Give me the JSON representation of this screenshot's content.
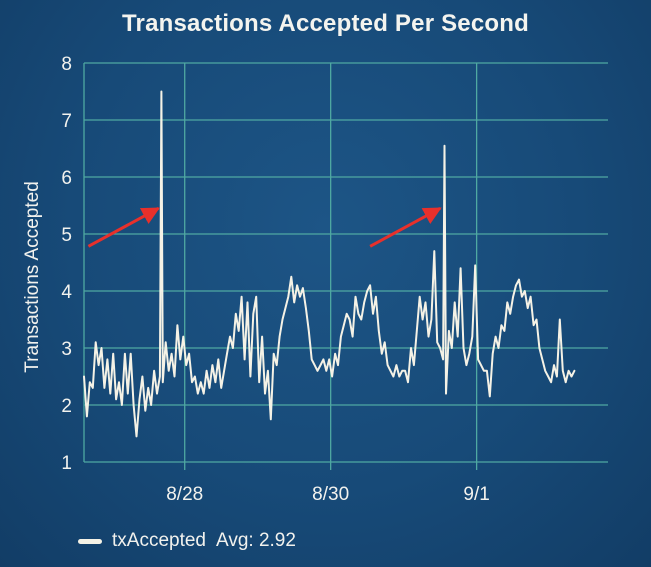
{
  "chart_data": {
    "type": "line",
    "title": "Transactions Accepted Per Second",
    "ylabel": "Transactions Accepted",
    "xlabel": "",
    "ylim": [
      1,
      8
    ],
    "yticks": [
      "1",
      "2",
      "3",
      "4",
      "5",
      "6",
      "7",
      "8"
    ],
    "xtick_labels": [
      "8/28",
      "8/30",
      "9/1"
    ],
    "x_range_days": [
      26.62,
      33.8
    ],
    "xtick_days": [
      28,
      30,
      32
    ],
    "grid": true,
    "legend": "bottom-left",
    "line_color": "#f5f2e6",
    "grid_color": "#4fa9a2",
    "arrow_color": "#e8302b",
    "series": [
      {
        "name": "txAccepted",
        "legend_suffix": "Avg: 2.92",
        "points": [
          [
            26.62,
            2.5
          ],
          [
            26.66,
            1.8
          ],
          [
            26.7,
            2.4
          ],
          [
            26.74,
            2.3
          ],
          [
            26.78,
            3.1
          ],
          [
            26.82,
            2.7
          ],
          [
            26.86,
            3.0
          ],
          [
            26.9,
            2.3
          ],
          [
            26.94,
            2.8
          ],
          [
            26.98,
            2.2
          ],
          [
            27.02,
            2.9
          ],
          [
            27.06,
            2.1
          ],
          [
            27.1,
            2.4
          ],
          [
            27.14,
            2.0
          ],
          [
            27.18,
            2.9
          ],
          [
            27.22,
            2.2
          ],
          [
            27.26,
            2.9
          ],
          [
            27.3,
            2.0
          ],
          [
            27.34,
            1.45
          ],
          [
            27.38,
            2.1
          ],
          [
            27.42,
            2.5
          ],
          [
            27.46,
            1.9
          ],
          [
            27.5,
            2.3
          ],
          [
            27.54,
            2.0
          ],
          [
            27.58,
            2.6
          ],
          [
            27.62,
            2.2
          ],
          [
            27.66,
            2.5
          ],
          [
            27.68,
            7.5
          ],
          [
            27.7,
            2.4
          ],
          [
            27.74,
            3.1
          ],
          [
            27.78,
            2.6
          ],
          [
            27.82,
            2.9
          ],
          [
            27.86,
            2.5
          ],
          [
            27.9,
            3.4
          ],
          [
            27.94,
            2.8
          ],
          [
            27.98,
            3.2
          ],
          [
            28.02,
            2.7
          ],
          [
            28.06,
            2.9
          ],
          [
            28.1,
            2.4
          ],
          [
            28.14,
            2.5
          ],
          [
            28.18,
            2.2
          ],
          [
            28.22,
            2.4
          ],
          [
            28.26,
            2.2
          ],
          [
            28.3,
            2.6
          ],
          [
            28.34,
            2.3
          ],
          [
            28.38,
            2.7
          ],
          [
            28.42,
            2.4
          ],
          [
            28.46,
            2.8
          ],
          [
            28.5,
            2.3
          ],
          [
            28.54,
            2.6
          ],
          [
            28.58,
            2.9
          ],
          [
            28.62,
            3.2
          ],
          [
            28.66,
            3.0
          ],
          [
            28.7,
            3.6
          ],
          [
            28.74,
            3.3
          ],
          [
            28.78,
            3.9
          ],
          [
            28.82,
            2.8
          ],
          [
            28.86,
            3.8
          ],
          [
            28.9,
            2.5
          ],
          [
            28.94,
            3.6
          ],
          [
            28.98,
            3.9
          ],
          [
            29.02,
            2.4
          ],
          [
            29.06,
            3.2
          ],
          [
            29.1,
            2.2
          ],
          [
            29.14,
            2.6
          ],
          [
            29.18,
            1.75
          ],
          [
            29.22,
            2.9
          ],
          [
            29.26,
            2.7
          ],
          [
            29.3,
            3.2
          ],
          [
            29.34,
            3.5
          ],
          [
            29.38,
            3.7
          ],
          [
            29.42,
            3.9
          ],
          [
            29.46,
            4.25
          ],
          [
            29.5,
            3.8
          ],
          [
            29.54,
            4.1
          ],
          [
            29.58,
            3.9
          ],
          [
            29.62,
            4.05
          ],
          [
            29.66,
            3.7
          ],
          [
            29.7,
            3.3
          ],
          [
            29.74,
            2.8
          ],
          [
            29.78,
            2.7
          ],
          [
            29.82,
            2.6
          ],
          [
            29.86,
            2.7
          ],
          [
            29.9,
            2.8
          ],
          [
            29.94,
            2.6
          ],
          [
            29.98,
            2.8
          ],
          [
            30.02,
            2.5
          ],
          [
            30.06,
            2.9
          ],
          [
            30.1,
            2.7
          ],
          [
            30.14,
            3.2
          ],
          [
            30.18,
            3.4
          ],
          [
            30.22,
            3.6
          ],
          [
            30.26,
            3.5
          ],
          [
            30.3,
            3.2
          ],
          [
            30.34,
            3.9
          ],
          [
            30.38,
            3.6
          ],
          [
            30.42,
            3.5
          ],
          [
            30.46,
            3.8
          ],
          [
            30.5,
            4.0
          ],
          [
            30.54,
            4.1
          ],
          [
            30.58,
            3.6
          ],
          [
            30.62,
            3.9
          ],
          [
            30.66,
            3.3
          ],
          [
            30.7,
            2.9
          ],
          [
            30.74,
            3.1
          ],
          [
            30.78,
            2.7
          ],
          [
            30.82,
            2.6
          ],
          [
            30.86,
            2.5
          ],
          [
            30.9,
            2.7
          ],
          [
            30.94,
            2.5
          ],
          [
            30.98,
            2.6
          ],
          [
            31.02,
            2.6
          ],
          [
            31.06,
            2.4
          ],
          [
            31.1,
            3.0
          ],
          [
            31.14,
            2.7
          ],
          [
            31.18,
            3.3
          ],
          [
            31.22,
            3.9
          ],
          [
            31.26,
            3.5
          ],
          [
            31.3,
            3.8
          ],
          [
            31.34,
            3.2
          ],
          [
            31.38,
            3.5
          ],
          [
            31.42,
            4.7
          ],
          [
            31.46,
            3.1
          ],
          [
            31.5,
            3.0
          ],
          [
            31.54,
            2.8
          ],
          [
            31.56,
            6.55
          ],
          [
            31.58,
            2.2
          ],
          [
            31.62,
            3.3
          ],
          [
            31.66,
            3.0
          ],
          [
            31.7,
            3.8
          ],
          [
            31.74,
            3.2
          ],
          [
            31.78,
            4.4
          ],
          [
            31.82,
            3.0
          ],
          [
            31.86,
            2.7
          ],
          [
            31.9,
            2.9
          ],
          [
            31.94,
            3.2
          ],
          [
            31.98,
            4.45
          ],
          [
            32.02,
            2.8
          ],
          [
            32.06,
            2.7
          ],
          [
            32.1,
            2.6
          ],
          [
            32.14,
            2.6
          ],
          [
            32.18,
            2.15
          ],
          [
            32.22,
            2.9
          ],
          [
            32.26,
            3.2
          ],
          [
            32.3,
            3.0
          ],
          [
            32.34,
            3.4
          ],
          [
            32.38,
            3.3
          ],
          [
            32.42,
            3.8
          ],
          [
            32.46,
            3.6
          ],
          [
            32.5,
            3.9
          ],
          [
            32.54,
            4.1
          ],
          [
            32.58,
            4.2
          ],
          [
            32.62,
            3.9
          ],
          [
            32.66,
            4.0
          ],
          [
            32.7,
            3.7
          ],
          [
            32.74,
            3.9
          ],
          [
            32.78,
            3.4
          ],
          [
            32.82,
            3.5
          ],
          [
            32.86,
            3.0
          ],
          [
            32.9,
            2.8
          ],
          [
            32.94,
            2.6
          ],
          [
            32.98,
            2.5
          ],
          [
            33.02,
            2.4
          ],
          [
            33.06,
            2.7
          ],
          [
            33.1,
            2.5
          ],
          [
            33.14,
            3.5
          ],
          [
            33.18,
            2.6
          ],
          [
            33.22,
            2.4
          ],
          [
            33.26,
            2.6
          ],
          [
            33.3,
            2.5
          ],
          [
            33.34,
            2.6
          ]
        ]
      }
    ],
    "annotations": [
      {
        "type": "arrow",
        "target_day": 27.64,
        "target_y": 5.45
      },
      {
        "type": "arrow",
        "target_day": 31.5,
        "target_y": 5.45
      }
    ]
  }
}
